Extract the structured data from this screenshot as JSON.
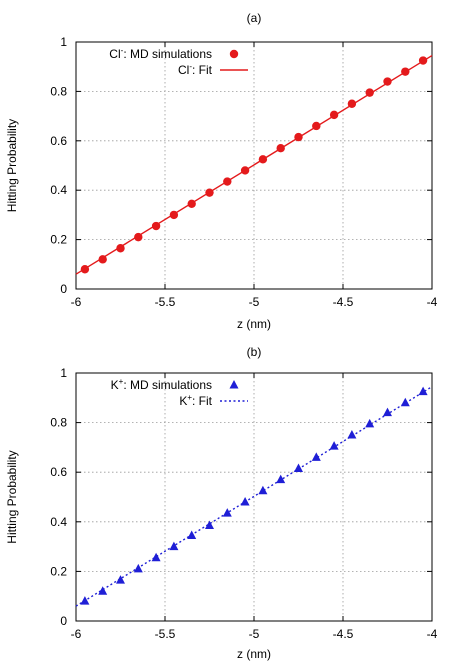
{
  "chart_data": [
    {
      "type": "scatter",
      "panel_label": "(a)",
      "xlabel": "z (nm)",
      "ylabel": "Hitting Probability",
      "xlim": [
        -6,
        -4
      ],
      "ylim": [
        0,
        1
      ],
      "xticks": [
        -6,
        -5.5,
        -5,
        -4.5,
        -4
      ],
      "xtick_labels": [
        "-6",
        "-5.5",
        "-5",
        "-4.5",
        "-4"
      ],
      "yticks": [
        0,
        0.2,
        0.4,
        0.6,
        0.8,
        1
      ],
      "ytick_labels": [
        "0",
        "0.2",
        "0.4",
        "0.6",
        "0.8",
        "1"
      ],
      "grid": true,
      "legend_position": "top-left",
      "series": [
        {
          "name": "Cl-: MD simulations",
          "legend_base": "Cl",
          "legend_sup": "-",
          "legend_rest": ": MD simulations",
          "kind": "points",
          "marker": "circle",
          "color": "#e41a1c",
          "x": [
            -5.95,
            -5.85,
            -5.75,
            -5.65,
            -5.55,
            -5.45,
            -5.35,
            -5.25,
            -5.15,
            -5.05,
            -4.95,
            -4.85,
            -4.75,
            -4.65,
            -4.55,
            -4.45,
            -4.35,
            -4.25,
            -4.15,
            -4.05
          ],
          "y": [
            0.08,
            0.12,
            0.165,
            0.21,
            0.255,
            0.3,
            0.345,
            0.39,
            0.435,
            0.48,
            0.525,
            0.57,
            0.615,
            0.66,
            0.705,
            0.75,
            0.795,
            0.84,
            0.88,
            0.925
          ]
        },
        {
          "name": "Cl-: Fit",
          "legend_base": "Cl",
          "legend_sup": "-",
          "legend_rest": ": Fit",
          "kind": "line",
          "style": "solid",
          "color": "#e41a1c",
          "x": [
            -6,
            -4
          ],
          "y": [
            0.06,
            0.945
          ]
        }
      ]
    },
    {
      "type": "scatter",
      "panel_label": "(b)",
      "xlabel": "z (nm)",
      "ylabel": "Hitting Probability",
      "xlim": [
        -6,
        -4
      ],
      "ylim": [
        0,
        1
      ],
      "xticks": [
        -6,
        -5.5,
        -5,
        -4.5,
        -4
      ],
      "xtick_labels": [
        "-6",
        "-5.5",
        "-5",
        "-4.5",
        "-4"
      ],
      "yticks": [
        0,
        0.2,
        0.4,
        0.6,
        0.8,
        1
      ],
      "ytick_labels": [
        "0",
        "0.2",
        "0.4",
        "0.6",
        "0.8",
        "1"
      ],
      "grid": true,
      "legend_position": "top-left",
      "series": [
        {
          "name": "K+: MD simulations",
          "legend_base": "K",
          "legend_sup": "+",
          "legend_rest": ": MD simulations",
          "kind": "points",
          "marker": "triangle",
          "color": "#1f1fd6",
          "x": [
            -5.95,
            -5.85,
            -5.75,
            -5.65,
            -5.55,
            -5.45,
            -5.35,
            -5.25,
            -5.15,
            -5.05,
            -4.95,
            -4.85,
            -4.75,
            -4.65,
            -4.55,
            -4.45,
            -4.35,
            -4.25,
            -4.15,
            -4.05
          ],
          "y": [
            0.08,
            0.12,
            0.165,
            0.21,
            0.255,
            0.3,
            0.345,
            0.385,
            0.435,
            0.48,
            0.525,
            0.57,
            0.615,
            0.66,
            0.705,
            0.75,
            0.795,
            0.84,
            0.88,
            0.925
          ]
        },
        {
          "name": "K+: Fit",
          "legend_base": "K",
          "legend_sup": "+",
          "legend_rest": ": Fit",
          "kind": "line",
          "style": "dotted",
          "color": "#1f1fd6",
          "x": [
            -6,
            -4
          ],
          "y": [
            0.06,
            0.945
          ]
        }
      ]
    }
  ]
}
